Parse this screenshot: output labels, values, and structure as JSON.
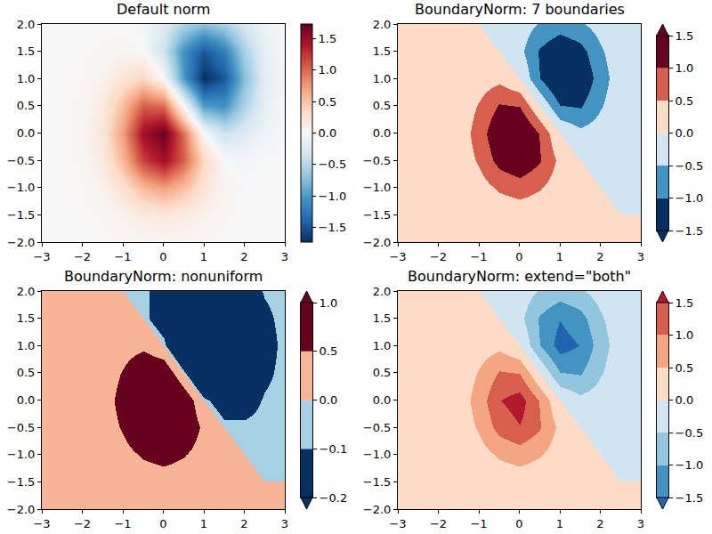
{
  "chart_data": [
    {
      "type": "heatmap",
      "title": "Default norm",
      "x": [
        -3,
        -2.5,
        -2,
        -1.5,
        -1,
        -0.5,
        0,
        0.5,
        1,
        1.5,
        2,
        2.5,
        3
      ],
      "y": [
        -2,
        -1.5,
        -1,
        -0.5,
        0,
        0.5,
        1,
        1.5,
        2
      ],
      "z": [
        [
          0,
          0,
          0.001,
          0.004,
          0.013,
          0.028,
          0.037,
          0.028,
          0.013,
          0.004,
          0.001,
          0,
          0
        ],
        [
          0,
          0,
          0.004,
          0.022,
          0.078,
          0.16,
          0.21,
          0.16,
          0.074,
          0.019,
          0.002,
          0,
          0
        ],
        [
          0,
          0.001,
          0.013,
          0.078,
          0.27,
          0.57,
          0.72,
          0.54,
          0.23,
          0.049,
          0,
          -0.002,
          -0.001
        ],
        [
          0,
          0.003,
          0.028,
          0.16,
          0.57,
          1.19,
          1.48,
          1.05,
          0.36,
          0,
          -0.049,
          -0.019,
          -0.004
        ],
        [
          0,
          0.004,
          0.037,
          0.21,
          0.72,
          1.48,
          1.73,
          0.98,
          0,
          -0.36,
          -0.23,
          -0.074,
          -0.013
        ],
        [
          0,
          0.003,
          0.028,
          0.16,
          0.54,
          1.05,
          0.98,
          0,
          -0.98,
          -1.05,
          -0.54,
          -0.16,
          -0.028
        ],
        [
          0,
          0.001,
          0.013,
          0.074,
          0.23,
          0.36,
          0,
          -0.98,
          -1.73,
          -1.48,
          -0.72,
          -0.21,
          -0.037
        ],
        [
          0,
          0,
          0.004,
          0.019,
          0.049,
          0,
          -0.36,
          -1.05,
          -1.48,
          -1.19,
          -0.57,
          -0.16,
          -0.028
        ],
        [
          0,
          0,
          0.001,
          0.002,
          0,
          -0.049,
          -0.23,
          -0.54,
          -0.72,
          -0.57,
          -0.27,
          -0.078,
          -0.013
        ]
      ],
      "xlim": [
        -3,
        3
      ],
      "xticks": [
        -3,
        -2,
        -1,
        0,
        1,
        2,
        3
      ],
      "ylim": [
        -2,
        2
      ],
      "yticks": [
        {
          "value": -2,
          "label": "−2.0"
        },
        {
          "value": -1.5,
          "label": "−1.5"
        },
        {
          "value": -1,
          "label": "−1.0"
        },
        {
          "value": -0.5,
          "label": "−0.5"
        },
        {
          "value": 0,
          "label": "0.0"
        },
        {
          "value": 0.5,
          "label": "0.5"
        },
        {
          "value": 1,
          "label": "1.0"
        },
        {
          "value": 1.5,
          "label": "1.5"
        },
        {
          "value": 2,
          "label": "2.0"
        }
      ],
      "colors": [
        "#053061",
        "#2166ac",
        "#4393c3",
        "#92c5de",
        "#d1e5f0",
        "#f7f7f7",
        "#fddbc7",
        "#f4a582",
        "#d6604d",
        "#b2182b",
        "#67001f"
      ],
      "colorbar": {
        "range": [
          -1.73,
          1.73
        ],
        "ticks": [
          {
            "value": -1.5,
            "label": "−1.5"
          },
          {
            "value": -1,
            "label": "−1.0"
          },
          {
            "value": -0.5,
            "label": "−0.5"
          },
          {
            "value": 0,
            "label": "0.0"
          },
          {
            "value": 0.5,
            "label": "0.5"
          },
          {
            "value": 1,
            "label": "1.0"
          },
          {
            "value": 1.5,
            "label": "1.5"
          }
        ]
      }
    },
    {
      "type": "heatmap",
      "title": "BoundaryNorm: 7 boundaries",
      "x": [
        -3,
        -2.5,
        -2,
        -1.5,
        -1,
        -0.5,
        0,
        0.5,
        1,
        1.5,
        2,
        2.5,
        3
      ],
      "y": [
        -2,
        -1.5,
        -1,
        -0.5,
        0,
        0.5,
        1,
        1.5,
        2
      ],
      "z": [
        [
          0,
          0,
          0.001,
          0.004,
          0.013,
          0.028,
          0.037,
          0.028,
          0.013,
          0.004,
          0.001,
          0,
          0
        ],
        [
          0,
          0,
          0.004,
          0.022,
          0.078,
          0.16,
          0.21,
          0.16,
          0.074,
          0.019,
          0.002,
          0,
          0
        ],
        [
          0,
          0.001,
          0.013,
          0.078,
          0.27,
          0.57,
          0.72,
          0.54,
          0.23,
          0.049,
          0,
          -0.002,
          -0.001
        ],
        [
          0,
          0.003,
          0.028,
          0.16,
          0.57,
          1.19,
          1.48,
          1.05,
          0.36,
          0,
          -0.049,
          -0.019,
          -0.004
        ],
        [
          0,
          0.004,
          0.037,
          0.21,
          0.72,
          1.48,
          1.73,
          0.98,
          0,
          -0.36,
          -0.23,
          -0.074,
          -0.013
        ],
        [
          0,
          0.003,
          0.028,
          0.16,
          0.54,
          1.05,
          0.98,
          0,
          -0.98,
          -1.05,
          -0.54,
          -0.16,
          -0.028
        ],
        [
          0,
          0.001,
          0.013,
          0.074,
          0.23,
          0.36,
          0,
          -0.98,
          -1.73,
          -1.48,
          -0.72,
          -0.21,
          -0.037
        ],
        [
          0,
          0,
          0.004,
          0.019,
          0.049,
          0,
          -0.36,
          -1.05,
          -1.48,
          -1.19,
          -0.57,
          -0.16,
          -0.028
        ],
        [
          0,
          0,
          0.001,
          0.002,
          0,
          -0.049,
          -0.23,
          -0.54,
          -0.72,
          -0.57,
          -0.27,
          -0.078,
          -0.013
        ]
      ],
      "xlim": [
        -3,
        3
      ],
      "xticks": [
        -3,
        -2,
        -1,
        0,
        1,
        2,
        3
      ],
      "ylim": [
        -2,
        2
      ],
      "yticks": [
        {
          "value": -2,
          "label": "−2.0"
        },
        {
          "value": -1.5,
          "label": "−1.5"
        },
        {
          "value": -1,
          "label": "−1.0"
        },
        {
          "value": -0.5,
          "label": "−0.5"
        },
        {
          "value": 0,
          "label": "0.0"
        },
        {
          "value": 0.5,
          "label": "0.5"
        },
        {
          "value": 1,
          "label": "1.0"
        },
        {
          "value": 1.5,
          "label": "1.5"
        },
        {
          "value": 2,
          "label": "2.0"
        }
      ],
      "colors": [
        "#053061",
        "#4393c3",
        "#d1e5f0",
        "#fddbc7",
        "#d6604d",
        "#67001f"
      ],
      "colorbar": {
        "boundaries": [
          {
            "value": -1.5,
            "label": "−1.5"
          },
          {
            "value": -1,
            "label": "−1.0"
          },
          {
            "value": -0.5,
            "label": "−0.5"
          },
          {
            "value": 0,
            "label": "0.0"
          },
          {
            "value": 0.5,
            "label": "0.5"
          },
          {
            "value": 1,
            "label": "1.0"
          },
          {
            "value": 1.5,
            "label": "1.5"
          }
        ]
      }
    },
    {
      "type": "heatmap",
      "title": "BoundaryNorm: nonuniform",
      "x": [
        -3,
        -2.5,
        -2,
        -1.5,
        -1,
        -0.5,
        0,
        0.5,
        1,
        1.5,
        2,
        2.5,
        3
      ],
      "y": [
        -2,
        -1.5,
        -1,
        -0.5,
        0,
        0.5,
        1,
        1.5,
        2
      ],
      "z": [
        [
          0,
          0,
          0.001,
          0.004,
          0.013,
          0.028,
          0.037,
          0.028,
          0.013,
          0.004,
          0.001,
          0,
          0
        ],
        [
          0,
          0,
          0.004,
          0.022,
          0.078,
          0.16,
          0.21,
          0.16,
          0.074,
          0.019,
          0.002,
          0,
          0
        ],
        [
          0,
          0.001,
          0.013,
          0.078,
          0.27,
          0.57,
          0.72,
          0.54,
          0.23,
          0.049,
          0,
          -0.002,
          -0.001
        ],
        [
          0,
          0.003,
          0.028,
          0.16,
          0.57,
          1.19,
          1.48,
          1.05,
          0.36,
          0,
          -0.049,
          -0.019,
          -0.004
        ],
        [
          0,
          0.004,
          0.037,
          0.21,
          0.72,
          1.48,
          1.73,
          0.98,
          0,
          -0.36,
          -0.23,
          -0.074,
          -0.013
        ],
        [
          0,
          0.003,
          0.028,
          0.16,
          0.54,
          1.05,
          0.98,
          0,
          -0.98,
          -1.05,
          -0.54,
          -0.16,
          -0.028
        ],
        [
          0,
          0.001,
          0.013,
          0.074,
          0.23,
          0.36,
          0,
          -0.98,
          -1.73,
          -1.48,
          -0.72,
          -0.21,
          -0.037
        ],
        [
          0,
          0,
          0.004,
          0.019,
          0.049,
          0,
          -0.36,
          -1.05,
          -1.48,
          -1.19,
          -0.57,
          -0.16,
          -0.028
        ],
        [
          0,
          0,
          0.001,
          0.002,
          0,
          -0.049,
          -0.23,
          -0.54,
          -0.72,
          -0.57,
          -0.27,
          -0.078,
          -0.013
        ]
      ],
      "xlim": [
        -3,
        3
      ],
      "xticks": [
        -3,
        -2,
        -1,
        0,
        1,
        2,
        3
      ],
      "ylim": [
        -2,
        2
      ],
      "yticks": [
        {
          "value": -2,
          "label": "−2.0"
        },
        {
          "value": -1.5,
          "label": "−1.5"
        },
        {
          "value": -1,
          "label": "−1.0"
        },
        {
          "value": -0.5,
          "label": "−0.5"
        },
        {
          "value": 0,
          "label": "0.0"
        },
        {
          "value": 0.5,
          "label": "0.5"
        },
        {
          "value": 1,
          "label": "1.0"
        },
        {
          "value": 1.5,
          "label": "1.5"
        },
        {
          "value": 2,
          "label": "2.0"
        }
      ],
      "colors": [
        "#053061",
        "#a7d0e4",
        "#f6b596",
        "#67001f"
      ],
      "colorbar": {
        "boundaries": [
          {
            "value": -0.2,
            "label": "−0.2"
          },
          {
            "value": -0.1,
            "label": "−0.1"
          },
          {
            "value": 0,
            "label": "0.0"
          },
          {
            "value": 0.5,
            "label": "0.5"
          },
          {
            "value": 1,
            "label": "1.0"
          }
        ]
      }
    },
    {
      "type": "heatmap",
      "title": "BoundaryNorm: extend=\"both\"",
      "x": [
        -3,
        -2.5,
        -2,
        -1.5,
        -1,
        -0.5,
        0,
        0.5,
        1,
        1.5,
        2,
        2.5,
        3
      ],
      "y": [
        -2,
        -1.5,
        -1,
        -0.5,
        0,
        0.5,
        1,
        1.5,
        2
      ],
      "z": [
        [
          0,
          0,
          0.001,
          0.004,
          0.013,
          0.028,
          0.037,
          0.028,
          0.013,
          0.004,
          0.001,
          0,
          0
        ],
        [
          0,
          0,
          0.004,
          0.022,
          0.078,
          0.16,
          0.21,
          0.16,
          0.074,
          0.019,
          0.002,
          0,
          0
        ],
        [
          0,
          0.001,
          0.013,
          0.078,
          0.27,
          0.57,
          0.72,
          0.54,
          0.23,
          0.049,
          0,
          -0.002,
          -0.001
        ],
        [
          0,
          0.003,
          0.028,
          0.16,
          0.57,
          1.19,
          1.48,
          1.05,
          0.36,
          0,
          -0.049,
          -0.019,
          -0.004
        ],
        [
          0,
          0.004,
          0.037,
          0.21,
          0.72,
          1.48,
          1.73,
          0.98,
          0,
          -0.36,
          -0.23,
          -0.074,
          -0.013
        ],
        [
          0,
          0.003,
          0.028,
          0.16,
          0.54,
          1.05,
          0.98,
          0,
          -0.98,
          -1.05,
          -0.54,
          -0.16,
          -0.028
        ],
        [
          0,
          0.001,
          0.013,
          0.074,
          0.23,
          0.36,
          0,
          -0.98,
          -1.73,
          -1.48,
          -0.72,
          -0.21,
          -0.037
        ],
        [
          0,
          0,
          0.004,
          0.019,
          0.049,
          0,
          -0.36,
          -1.05,
          -1.48,
          -1.19,
          -0.57,
          -0.16,
          -0.028
        ],
        [
          0,
          0,
          0.001,
          0.002,
          0,
          -0.049,
          -0.23,
          -0.54,
          -0.72,
          -0.57,
          -0.27,
          -0.078,
          -0.013
        ]
      ],
      "xlim": [
        -3,
        3
      ],
      "xticks": [
        -3,
        -2,
        -1,
        0,
        1,
        2,
        3
      ],
      "ylim": [
        -2,
        2
      ],
      "yticks": [
        {
          "value": -2,
          "label": "−2.0"
        },
        {
          "value": -1.5,
          "label": "−1.5"
        },
        {
          "value": -1,
          "label": "−1.0"
        },
        {
          "value": -0.5,
          "label": "−0.5"
        },
        {
          "value": 0,
          "label": "0.0"
        },
        {
          "value": 0.5,
          "label": "0.5"
        },
        {
          "value": 1,
          "label": "1.0"
        },
        {
          "value": 1.5,
          "label": "1.5"
        },
        {
          "value": 2,
          "label": "2.0"
        }
      ],
      "colors": [
        "#2166ac",
        "#4393c3",
        "#92c5de",
        "#d1e5f0",
        "#fddbc7",
        "#f4a582",
        "#d6604d",
        "#b2182b"
      ],
      "colorbar": {
        "boundaries": [
          {
            "value": -1.5,
            "label": "−1.5"
          },
          {
            "value": -1,
            "label": "−1.0"
          },
          {
            "value": -0.5,
            "label": "−0.5"
          },
          {
            "value": 0,
            "label": "0.0"
          },
          {
            "value": 0.5,
            "label": "0.5"
          },
          {
            "value": 1,
            "label": "1.0"
          },
          {
            "value": 1.5,
            "label": "1.5"
          }
        ]
      }
    }
  ]
}
